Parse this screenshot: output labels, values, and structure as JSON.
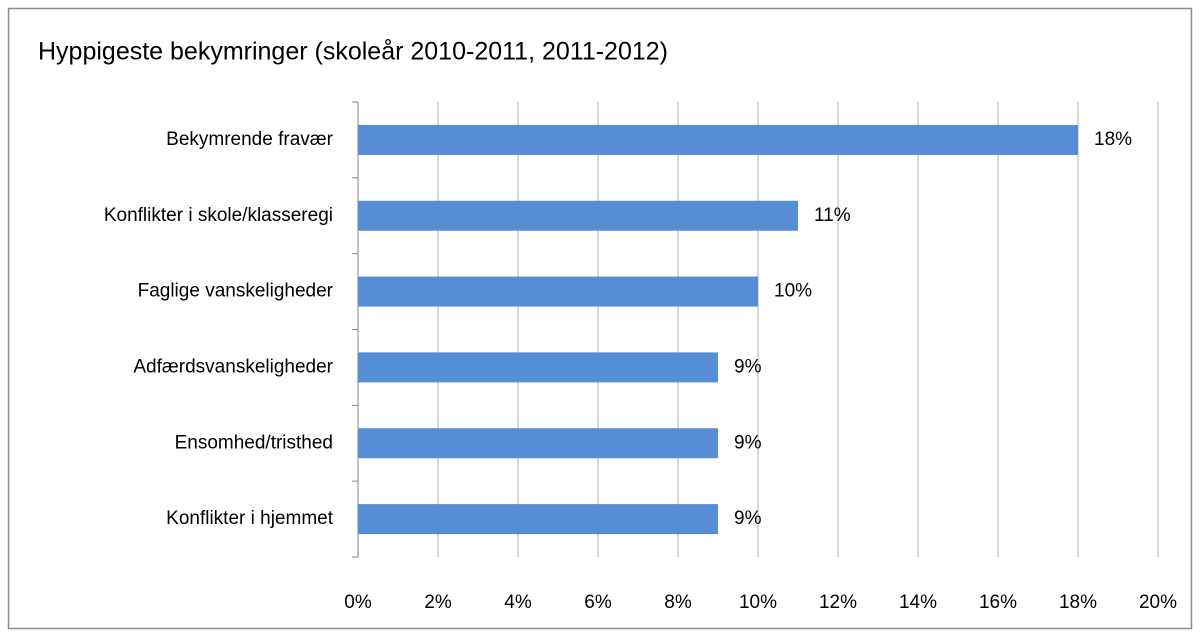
{
  "chart_data": {
    "type": "bar",
    "orientation": "horizontal",
    "title": "Hyppigeste bekymringer (skoleår 2010-2011, 2011-2012)",
    "categories": [
      "Bekymrende fravær",
      "Konflikter i skole/klasseregi",
      "Faglige vanskeligheder",
      "Adfærdsvanskeligheder",
      "Ensomhed/tristhed",
      "Konflikter i hjemmet"
    ],
    "values": [
      18,
      11,
      10,
      9,
      9,
      9
    ],
    "value_labels": [
      "18%",
      "11%",
      "10%",
      "9%",
      "9%",
      "9%"
    ],
    "color": "#558ed5",
    "xlim": [
      0,
      20
    ],
    "xticks": [
      {
        "value": 0,
        "label": "0%"
      },
      {
        "value": 2,
        "label": "2%"
      },
      {
        "value": 4,
        "label": "4%"
      },
      {
        "value": 6,
        "label": "6%"
      },
      {
        "value": 8,
        "label": "8%"
      },
      {
        "value": 10,
        "label": "10%"
      },
      {
        "value": 12,
        "label": "12%"
      },
      {
        "value": 14,
        "label": "14%"
      },
      {
        "value": 16,
        "label": "16%"
      },
      {
        "value": 18,
        "label": "18%"
      },
      {
        "value": 20,
        "label": "20%"
      }
    ],
    "grid": true
  }
}
